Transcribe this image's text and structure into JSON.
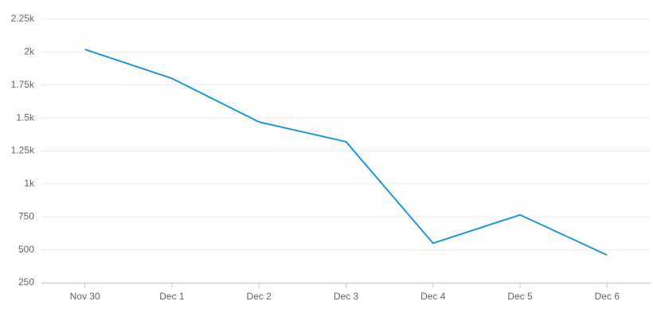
{
  "chart_data": {
    "type": "line",
    "categories": [
      "Nov 30",
      "Dec 1",
      "Dec 2",
      "Dec 3",
      "Dec 4",
      "Dec 5",
      "Dec 6"
    ],
    "series": [
      {
        "color": "#1f96d8",
        "values": [
          2020,
          1800,
          1470,
          1320,
          550,
          765,
          460
        ]
      }
    ],
    "ylim": [
      250,
      2250
    ],
    "yticks": [
      250,
      500,
      750,
      {
        "value": 1000,
        "label": "1k"
      },
      {
        "value": 1250,
        "label": "1.25k"
      },
      {
        "value": 1500,
        "label": "1.5k"
      },
      {
        "value": 1750,
        "label": "1.75k"
      },
      {
        "value": 2000,
        "label": "2k"
      },
      {
        "value": 2250,
        "label": "2.25k"
      }
    ],
    "grid": true
  }
}
